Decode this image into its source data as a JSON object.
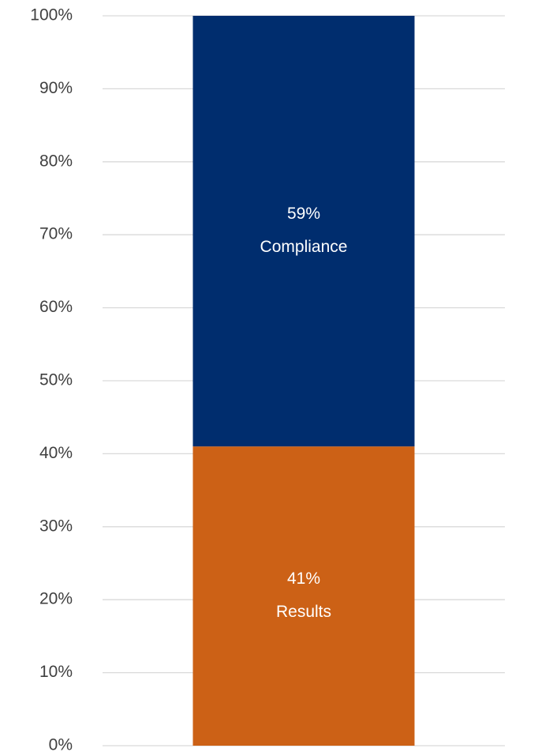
{
  "chart_data": {
    "type": "stacked_bar",
    "categories": [
      null
    ],
    "series": [
      {
        "name": "Results",
        "color": "#cc6116",
        "values": [
          41
        ],
        "value_labels": [
          "41%"
        ]
      },
      {
        "name": "Compliance",
        "color": "#002d6e",
        "values": [
          59
        ],
        "value_labels": [
          "59%"
        ]
      }
    ],
    "ylim": [
      0,
      100
    ],
    "yticks": [
      {
        "value": 0,
        "label": "0%"
      },
      {
        "value": 10,
        "label": "10%"
      },
      {
        "value": 20,
        "label": "20%"
      },
      {
        "value": 30,
        "label": "30%"
      },
      {
        "value": 40,
        "label": "40%"
      },
      {
        "value": 50,
        "label": "50%"
      },
      {
        "value": 60,
        "label": "60%"
      },
      {
        "value": 70,
        "label": "70%"
      },
      {
        "value": 80,
        "label": "80%"
      },
      {
        "value": 90,
        "label": "90%"
      },
      {
        "value": 100,
        "label": "100%"
      }
    ],
    "grid": true
  }
}
